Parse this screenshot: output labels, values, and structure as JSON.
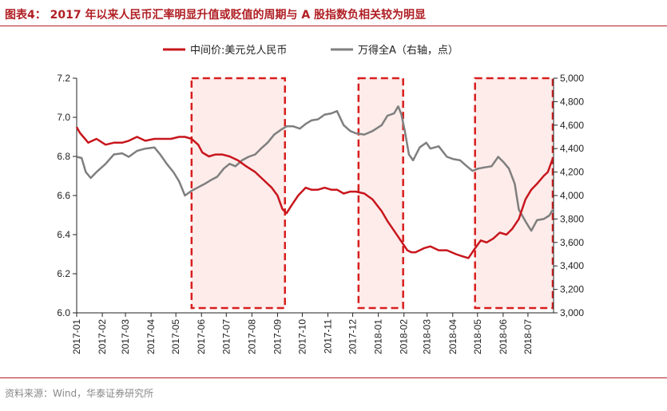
{
  "header": {
    "figure_title": "图表4： 2017 年以来人民币汇率明显升值或贬值的周期与 A 股指数负相关较为明显"
  },
  "footer": {
    "source": "资料来源：Wind，华泰证券研究所"
  },
  "colors": {
    "accent": "#b01f24",
    "cny_line": "#c8161d",
    "index_line": "#7f7f7f",
    "highlight_fill": "#fdecea",
    "highlight_border": "#d81e1e"
  },
  "chart_data": {
    "type": "line",
    "x_tick_labels": [
      "2017-01",
      "2017-02",
      "2017-03",
      "2017-04",
      "2017-05",
      "2017-06",
      "2017-07",
      "2017-08",
      "2017-09",
      "2017-10",
      "2017-11",
      "2017-12",
      "2018-01",
      "2018-02",
      "2018-03",
      "2018-04",
      "2018-05",
      "2018-06",
      "2018-07"
    ],
    "y_left": {
      "range": [
        6.0,
        7.2
      ],
      "tick_labels": [
        "6.0",
        "6.2",
        "6.4",
        "6.6",
        "6.8",
        "7.0",
        "7.2"
      ]
    },
    "y_right": {
      "range": [
        3000,
        5000
      ],
      "tick_labels": [
        "3,000",
        "3,200",
        "3,400",
        "3,600",
        "3,800",
        "4,000",
        "4,200",
        "4,400",
        "4,600",
        "4,800",
        "5,000"
      ]
    },
    "series": [
      {
        "name": "中间价:美元兑人民币",
        "axis": "left",
        "points": [
          [
            "2017-01-01",
            6.95
          ],
          [
            "2017-01-05",
            6.92
          ],
          [
            "2017-01-09",
            6.9
          ],
          [
            "2017-01-15",
            6.87
          ],
          [
            "2017-01-25",
            6.89
          ],
          [
            "2017-02-05",
            6.86
          ],
          [
            "2017-02-15",
            6.87
          ],
          [
            "2017-02-25",
            6.87
          ],
          [
            "2017-03-05",
            6.88
          ],
          [
            "2017-03-15",
            6.9
          ],
          [
            "2017-03-25",
            6.88
          ],
          [
            "2017-04-05",
            6.89
          ],
          [
            "2017-04-15",
            6.89
          ],
          [
            "2017-04-25",
            6.89
          ],
          [
            "2017-05-05",
            6.9
          ],
          [
            "2017-05-12",
            6.9
          ],
          [
            "2017-05-20",
            6.89
          ],
          [
            "2017-05-28",
            6.86
          ],
          [
            "2017-06-02",
            6.82
          ],
          [
            "2017-06-10",
            6.8
          ],
          [
            "2017-06-18",
            6.81
          ],
          [
            "2017-06-26",
            6.81
          ],
          [
            "2017-07-05",
            6.8
          ],
          [
            "2017-07-15",
            6.78
          ],
          [
            "2017-07-25",
            6.75
          ],
          [
            "2017-08-05",
            6.72
          ],
          [
            "2017-08-15",
            6.68
          ],
          [
            "2017-08-25",
            6.64
          ],
          [
            "2017-09-01",
            6.6
          ],
          [
            "2017-09-07",
            6.53
          ],
          [
            "2017-09-12",
            6.51
          ],
          [
            "2017-09-18",
            6.55
          ],
          [
            "2017-09-26",
            6.6
          ],
          [
            "2017-10-05",
            6.64
          ],
          [
            "2017-10-12",
            6.63
          ],
          [
            "2017-10-20",
            6.63
          ],
          [
            "2017-10-28",
            6.64
          ],
          [
            "2017-11-05",
            6.63
          ],
          [
            "2017-11-12",
            6.63
          ],
          [
            "2017-11-20",
            6.61
          ],
          [
            "2017-11-28",
            6.62
          ],
          [
            "2017-12-05",
            6.62
          ],
          [
            "2017-12-15",
            6.61
          ],
          [
            "2017-12-25",
            6.58
          ],
          [
            "2018-01-05",
            6.52
          ],
          [
            "2018-01-12",
            6.47
          ],
          [
            "2018-01-20",
            6.42
          ],
          [
            "2018-01-28",
            6.37
          ],
          [
            "2018-02-05",
            6.32
          ],
          [
            "2018-02-10",
            6.31
          ],
          [
            "2018-02-15",
            6.31
          ],
          [
            "2018-02-25",
            6.33
          ],
          [
            "2018-03-05",
            6.34
          ],
          [
            "2018-03-15",
            6.32
          ],
          [
            "2018-03-25",
            6.32
          ],
          [
            "2018-04-05",
            6.3
          ],
          [
            "2018-04-12",
            6.29
          ],
          [
            "2018-04-20",
            6.28
          ],
          [
            "2018-04-28",
            6.33
          ],
          [
            "2018-05-05",
            6.37
          ],
          [
            "2018-05-12",
            6.36
          ],
          [
            "2018-05-20",
            6.38
          ],
          [
            "2018-05-28",
            6.41
          ],
          [
            "2018-06-05",
            6.4
          ],
          [
            "2018-06-12",
            6.43
          ],
          [
            "2018-06-20",
            6.48
          ],
          [
            "2018-06-28",
            6.58
          ],
          [
            "2018-07-05",
            6.63
          ],
          [
            "2018-07-12",
            6.66
          ],
          [
            "2018-07-20",
            6.7
          ],
          [
            "2018-07-25",
            6.72
          ],
          [
            "2018-07-31",
            6.79
          ]
        ]
      },
      {
        "name": "万得全A（右轴，点）",
        "axis": "right",
        "points": [
          [
            "2017-01-01",
            4330
          ],
          [
            "2017-01-07",
            4320
          ],
          [
            "2017-01-12",
            4200
          ],
          [
            "2017-01-18",
            4150
          ],
          [
            "2017-01-25",
            4200
          ],
          [
            "2017-02-05",
            4270
          ],
          [
            "2017-02-15",
            4350
          ],
          [
            "2017-02-25",
            4360
          ],
          [
            "2017-03-05",
            4330
          ],
          [
            "2017-03-15",
            4380
          ],
          [
            "2017-03-25",
            4400
          ],
          [
            "2017-04-05",
            4410
          ],
          [
            "2017-04-12",
            4350
          ],
          [
            "2017-04-20",
            4270
          ],
          [
            "2017-04-28",
            4200
          ],
          [
            "2017-05-05",
            4120
          ],
          [
            "2017-05-12",
            4000
          ],
          [
            "2017-05-20",
            4040
          ],
          [
            "2017-05-28",
            4070
          ],
          [
            "2017-06-05",
            4100
          ],
          [
            "2017-06-12",
            4130
          ],
          [
            "2017-06-20",
            4160
          ],
          [
            "2017-06-28",
            4230
          ],
          [
            "2017-07-05",
            4270
          ],
          [
            "2017-07-12",
            4250
          ],
          [
            "2017-07-20",
            4300
          ],
          [
            "2017-07-28",
            4330
          ],
          [
            "2017-08-05",
            4350
          ],
          [
            "2017-08-12",
            4400
          ],
          [
            "2017-08-20",
            4450
          ],
          [
            "2017-08-28",
            4520
          ],
          [
            "2017-09-05",
            4560
          ],
          [
            "2017-09-12",
            4590
          ],
          [
            "2017-09-20",
            4590
          ],
          [
            "2017-09-28",
            4570
          ],
          [
            "2017-10-05",
            4610
          ],
          [
            "2017-10-12",
            4640
          ],
          [
            "2017-10-20",
            4650
          ],
          [
            "2017-10-28",
            4690
          ],
          [
            "2017-11-05",
            4700
          ],
          [
            "2017-11-12",
            4720
          ],
          [
            "2017-11-20",
            4600
          ],
          [
            "2017-11-28",
            4550
          ],
          [
            "2017-12-05",
            4530
          ],
          [
            "2017-12-15",
            4520
          ],
          [
            "2017-12-25",
            4550
          ],
          [
            "2018-01-05",
            4600
          ],
          [
            "2018-01-12",
            4680
          ],
          [
            "2018-01-20",
            4700
          ],
          [
            "2018-01-25",
            4760
          ],
          [
            "2018-01-29",
            4690
          ],
          [
            "2018-02-02",
            4550
          ],
          [
            "2018-02-07",
            4350
          ],
          [
            "2018-02-12",
            4300
          ],
          [
            "2018-02-20",
            4410
          ],
          [
            "2018-02-28",
            4450
          ],
          [
            "2018-03-05",
            4400
          ],
          [
            "2018-03-15",
            4420
          ],
          [
            "2018-03-25",
            4330
          ],
          [
            "2018-04-02",
            4310
          ],
          [
            "2018-04-10",
            4300
          ],
          [
            "2018-04-18",
            4250
          ],
          [
            "2018-04-25",
            4210
          ],
          [
            "2018-05-02",
            4230
          ],
          [
            "2018-05-10",
            4240
          ],
          [
            "2018-05-18",
            4250
          ],
          [
            "2018-05-26",
            4330
          ],
          [
            "2018-06-02",
            4280
          ],
          [
            "2018-06-08",
            4230
          ],
          [
            "2018-06-15",
            4100
          ],
          [
            "2018-06-20",
            3880
          ],
          [
            "2018-06-28",
            3780
          ],
          [
            "2018-07-05",
            3700
          ],
          [
            "2018-07-12",
            3790
          ],
          [
            "2018-07-20",
            3800
          ],
          [
            "2018-07-27",
            3830
          ],
          [
            "2018-07-31",
            3880
          ]
        ]
      }
    ],
    "highlighted_periods": [
      {
        "from": "2017-05-20",
        "to": "2017-09-10"
      },
      {
        "from": "2017-12-08",
        "to": "2018-01-31"
      },
      {
        "from": "2018-04-28",
        "to": "2018-07-31"
      }
    ],
    "legend_position": "top-center",
    "grid": false
  }
}
